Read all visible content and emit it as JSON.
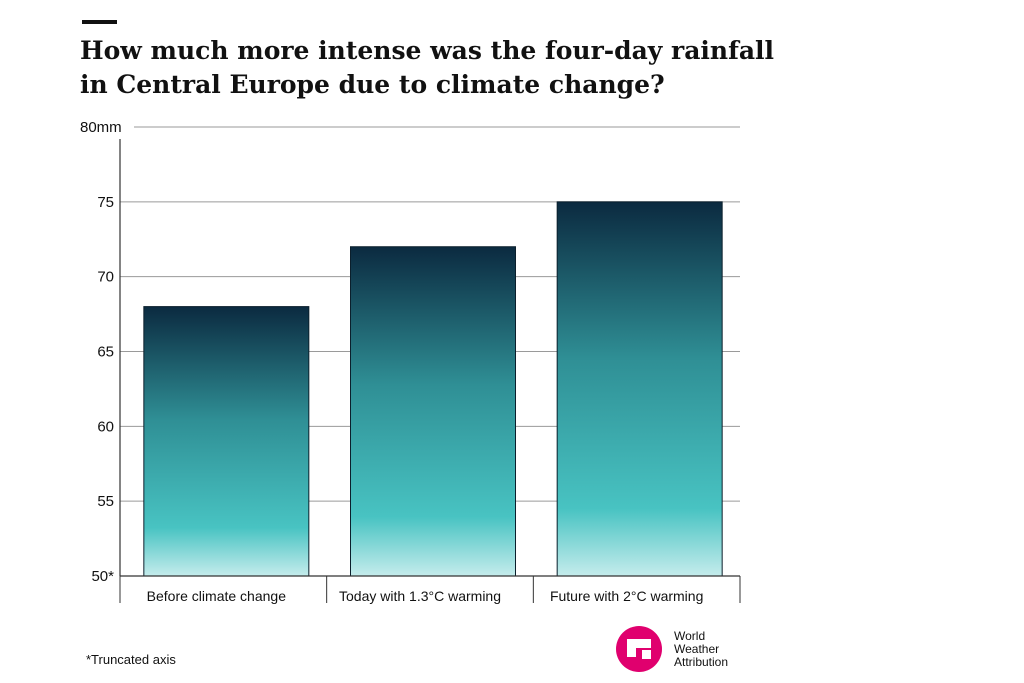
{
  "header": {
    "title_lines": [
      "How much more intense was the four-day rainfall",
      "in Central Europe due to climate change?"
    ]
  },
  "footnote": "*Truncated axis",
  "logo": {
    "icon": "world-weather-attribution-logo",
    "lines": [
      "World",
      "Weather",
      "Attribution"
    ],
    "color": "#e0006e"
  },
  "chart_data": {
    "type": "bar",
    "categories": [
      "Before climate change",
      "Today with 1.3°C warming",
      "Future with 2°C warming"
    ],
    "values": [
      68,
      72,
      75
    ],
    "ylim": [
      50,
      80
    ],
    "yticks": [
      50,
      55,
      60,
      65,
      70,
      75,
      80
    ],
    "ytick_labels": [
      "50*",
      "55",
      "60",
      "65",
      "70",
      "75",
      "80mm"
    ],
    "grid": true,
    "colors": {
      "bar_top": "#0b2a40",
      "bar_mid": "#2f8f95",
      "bar_low": "#48c3c2",
      "bar_bottom": "#c5ecec"
    }
  }
}
